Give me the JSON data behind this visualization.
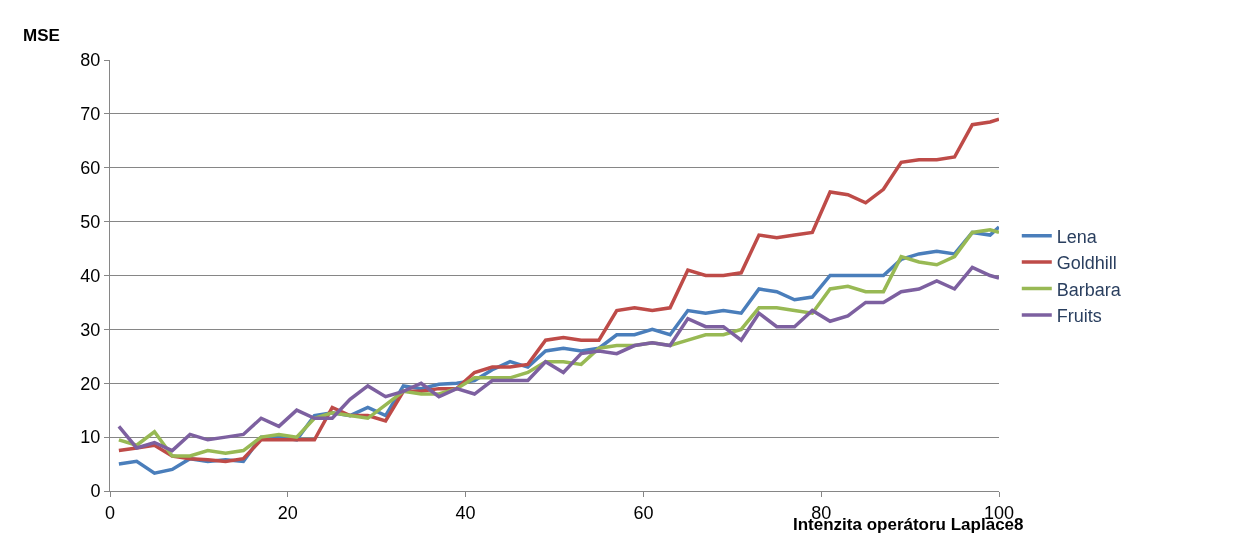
{
  "chart_data": {
    "type": "line",
    "xlabel": "Intenzita operátoru Laplace8",
    "ylabel": "MSE",
    "x": [
      1,
      3,
      5,
      7,
      9,
      11,
      13,
      15,
      17,
      19,
      21,
      23,
      25,
      27,
      29,
      31,
      33,
      35,
      37,
      39,
      41,
      43,
      45,
      47,
      49,
      51,
      53,
      55,
      57,
      59,
      61,
      63,
      65,
      67,
      69,
      71,
      73,
      75,
      77,
      79,
      81,
      83,
      85,
      87,
      89,
      91,
      93,
      95,
      97,
      99,
      100
    ],
    "series": [
      {
        "name": "Lena",
        "color": "#4a7ebb",
        "values": [
          5,
          5.5,
          3.3,
          4,
          6,
          5.5,
          5.8,
          5.5,
          10,
          10,
          9.5,
          14,
          14.5,
          14,
          15.5,
          14,
          19.5,
          19,
          19.8,
          20,
          20.5,
          22.5,
          24,
          23,
          26,
          26.5,
          26,
          26.5,
          29,
          29,
          30,
          29,
          33.5,
          33,
          33.5,
          33,
          37.5,
          37,
          35.5,
          36,
          40,
          40,
          40,
          40,
          43,
          44,
          44.5,
          44,
          48,
          47.5,
          49
        ]
      },
      {
        "name": "Goldhill",
        "color": "#be4b48",
        "values": [
          7.5,
          8,
          8.5,
          6.5,
          6,
          5.8,
          5.5,
          6,
          9.5,
          9.5,
          9.5,
          9.5,
          15.5,
          14,
          14,
          13,
          18.5,
          18.5,
          19,
          19,
          22,
          23,
          23,
          23.5,
          28,
          28.5,
          28,
          28,
          33.5,
          34,
          33.5,
          34,
          41,
          40,
          40,
          40.5,
          47.5,
          47,
          47.5,
          48,
          55.5,
          55,
          53.5,
          56,
          61,
          61.5,
          61.5,
          62,
          68,
          68.5,
          69
        ]
      },
      {
        "name": "Barbara",
        "color": "#98b954",
        "values": [
          9.5,
          8.5,
          11,
          6.5,
          6.5,
          7.5,
          7,
          7.5,
          10,
          10.5,
          10,
          13.5,
          14.5,
          14,
          13.5,
          16,
          18.5,
          18,
          18,
          19,
          21,
          21,
          21,
          22,
          24,
          24,
          23.5,
          26.5,
          27,
          27,
          27.5,
          27,
          28,
          29,
          29,
          30,
          34,
          34,
          33.5,
          33,
          37.5,
          38,
          37,
          37,
          43.5,
          42.5,
          42,
          43.5,
          48,
          48.5,
          48
        ]
      },
      {
        "name": "Fruits",
        "color": "#7d60a0",
        "values": [
          12,
          8,
          9,
          7.5,
          10.5,
          9.5,
          10,
          10.5,
          13.5,
          12,
          15,
          13.5,
          13.5,
          17,
          19.5,
          17.5,
          18.5,
          20,
          17.5,
          19,
          18,
          20.5,
          20.5,
          20.5,
          24,
          22,
          25.5,
          26,
          25.5,
          27,
          27.5,
          27,
          32,
          30.5,
          30.5,
          28,
          33,
          30.5,
          30.5,
          33.5,
          31.5,
          32.5,
          35,
          35,
          37,
          37.5,
          39,
          37.5,
          41.5,
          40,
          39.5
        ]
      }
    ],
    "xlim": [
      0,
      100
    ],
    "xticks": [
      0,
      20,
      40,
      60,
      80,
      100
    ],
    "ylim": [
      0,
      80
    ],
    "yticks": [
      0,
      10,
      20,
      30,
      40,
      50,
      60,
      70,
      80
    ],
    "grid": "y",
    "legend": "right",
    "marker": "none",
    "line_style": "solid"
  }
}
